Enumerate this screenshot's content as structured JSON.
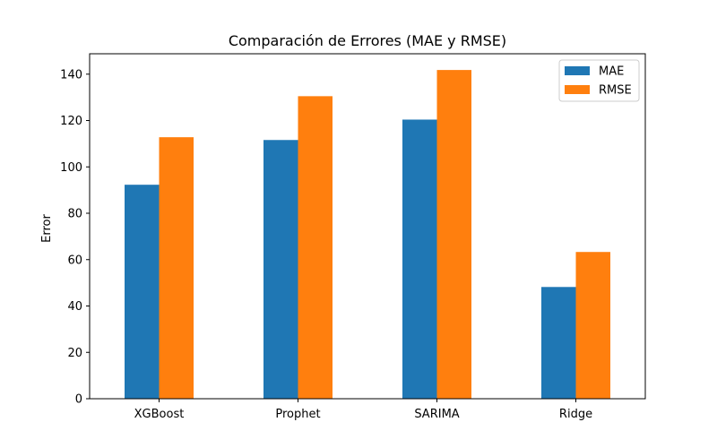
{
  "chart_data": {
    "type": "bar",
    "title": "Comparación de Errores (MAE y RMSE)",
    "xlabel": "",
    "ylabel": "Error",
    "categories": [
      "XGBoost",
      "Prophet",
      "SARIMA",
      "Ridge"
    ],
    "series": [
      {
        "name": "MAE",
        "values": [
          92.3,
          111.6,
          120.4,
          48.2
        ],
        "color": "#1f77b4"
      },
      {
        "name": "RMSE",
        "values": [
          112.8,
          130.5,
          141.8,
          63.3
        ],
        "color": "#ff7f0e"
      }
    ],
    "ylim": [
      0,
      148.8
    ],
    "yticks": [
      0,
      20,
      40,
      60,
      80,
      100,
      120,
      140
    ],
    "ytick_labels": [
      "0",
      "20",
      "40",
      "60",
      "80",
      "100",
      "120",
      "140"
    ],
    "grid": false,
    "legend_position": "top-right"
  }
}
